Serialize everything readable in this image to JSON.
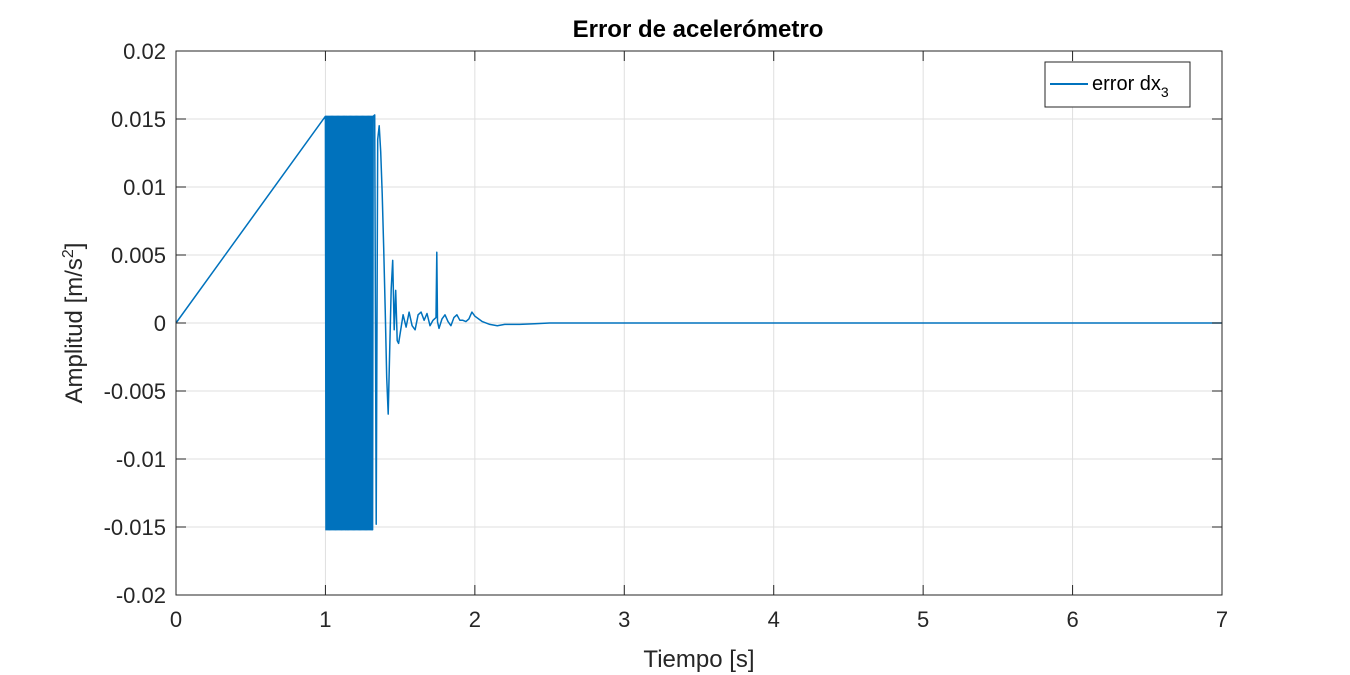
{
  "chart_data": {
    "type": "line",
    "title": "Error de acelerómetro",
    "xlabel": "Tiempo [s]",
    "ylabel_base": "Amplitud [m/s",
    "ylabel_sup": "2",
    "ylabel_close": "]",
    "xlim": [
      0,
      7
    ],
    "ylim": [
      -0.02,
      0.02
    ],
    "x_ticks": [
      0,
      1,
      2,
      3,
      4,
      5,
      6,
      7
    ],
    "x_tick_labels": [
      "0",
      "1",
      "2",
      "3",
      "4",
      "5",
      "6",
      "7"
    ],
    "y_ticks": [
      -0.02,
      -0.015,
      -0.01,
      -0.005,
      0,
      0.005,
      0.01,
      0.015,
      0.02
    ],
    "y_tick_labels": [
      "-0.02",
      "-0.015",
      "-0.01",
      "-0.005",
      "0",
      "0.005",
      "0.01",
      "0.015",
      "0.02"
    ],
    "grid": true,
    "legend_position": "top-right",
    "series": [
      {
        "legend_base": "error dx",
        "legend_sub": "3",
        "color": "#0072BD",
        "oscillation": {
          "x_start": 1.0,
          "x_end": 1.32,
          "amplitude": 0.0152,
          "cycles": 40
        },
        "x": [
          0,
          1.0,
          1.33,
          1.34,
          1.35,
          1.36,
          1.37,
          1.38,
          1.39,
          1.4,
          1.41,
          1.42,
          1.43,
          1.44,
          1.45,
          1.46,
          1.47,
          1.48,
          1.49,
          1.5,
          1.52,
          1.54,
          1.56,
          1.58,
          1.6,
          1.62,
          1.64,
          1.66,
          1.68,
          1.7,
          1.72,
          1.74,
          1.745,
          1.75,
          1.76,
          1.78,
          1.8,
          1.82,
          1.84,
          1.86,
          1.88,
          1.9,
          1.92,
          1.94,
          1.96,
          1.98,
          2.0,
          2.05,
          2.1,
          2.15,
          2.2,
          2.3,
          2.4,
          2.5,
          2.7,
          3.0,
          7.0
        ],
        "y": [
          0,
          0,
          0.0153,
          -0.0148,
          0.0135,
          0.0145,
          0.0126,
          0.0095,
          0.0055,
          0.001,
          -0.004,
          -0.0067,
          -0.002,
          0.0025,
          0.0046,
          -0.0005,
          0.0024,
          -0.0013,
          -0.0015,
          -0.0008,
          0.0006,
          -0.0003,
          0.0008,
          -0.0002,
          -0.0005,
          0.0006,
          0.0008,
          0.0002,
          0.0007,
          -0.0002,
          0.0002,
          0.0004,
          0.0052,
          0.0001,
          -0.0004,
          0.0003,
          0.0006,
          0.0001,
          -0.0002,
          0.0004,
          0.0006,
          0.0002,
          0.0002,
          0.0001,
          0.0003,
          0.0008,
          0.0005,
          0.0001,
          -0.0001,
          -0.0002,
          -0.0001,
          -0.0001,
          -5e-05,
          0,
          0,
          0,
          0
        ]
      }
    ]
  }
}
